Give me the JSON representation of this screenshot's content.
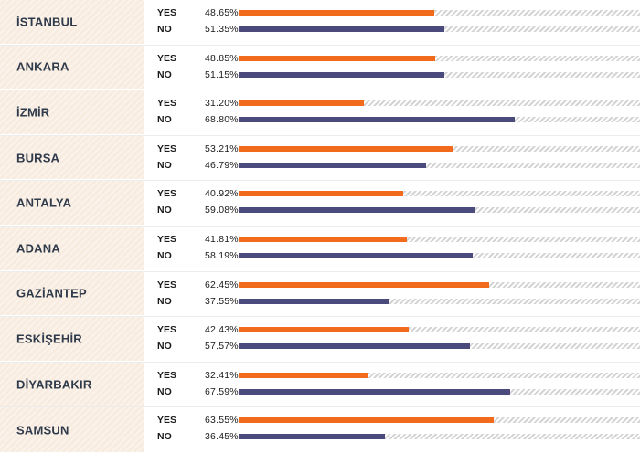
{
  "colors": {
    "yes": "#f26a1b",
    "no": "#4a4a7c"
  },
  "chart_data": {
    "type": "bar",
    "orientation": "horizontal",
    "xlim": [
      0,
      100
    ],
    "series_labels": [
      "YES",
      "NO"
    ],
    "rows": [
      {
        "city": "İSTANBUL",
        "yes": 48.65,
        "no": 51.35,
        "yes_text": "48.65%",
        "no_text": "51.35%"
      },
      {
        "city": "ANKARA",
        "yes": 48.85,
        "no": 51.15,
        "yes_text": "48.85%",
        "no_text": "51.15%"
      },
      {
        "city": "İZMİR",
        "yes": 31.2,
        "no": 68.8,
        "yes_text": "31.20%",
        "no_text": "68.80%"
      },
      {
        "city": "BURSA",
        "yes": 53.21,
        "no": 46.79,
        "yes_text": "53.21%",
        "no_text": "46.79%"
      },
      {
        "city": "ANTALYA",
        "yes": 40.92,
        "no": 59.08,
        "yes_text": "40.92%",
        "no_text": "59.08%"
      },
      {
        "city": "ADANA",
        "yes": 41.81,
        "no": 58.19,
        "yes_text": "41.81%",
        "no_text": "58.19%"
      },
      {
        "city": "GAZİANTEP",
        "yes": 62.45,
        "no": 37.55,
        "yes_text": "62.45%",
        "no_text": "37.55%"
      },
      {
        "city": "ESKİŞEHİR",
        "yes": 42.43,
        "no": 57.57,
        "yes_text": "42.43%",
        "no_text": "57.57%"
      },
      {
        "city": "DİYARBAKIR",
        "yes": 32.41,
        "no": 67.59,
        "yes_text": "32.41%",
        "no_text": "67.59%"
      },
      {
        "city": "SAMSUN",
        "yes": 63.55,
        "no": 36.45,
        "yes_text": "63.55%",
        "no_text": "36.45%"
      }
    ]
  }
}
